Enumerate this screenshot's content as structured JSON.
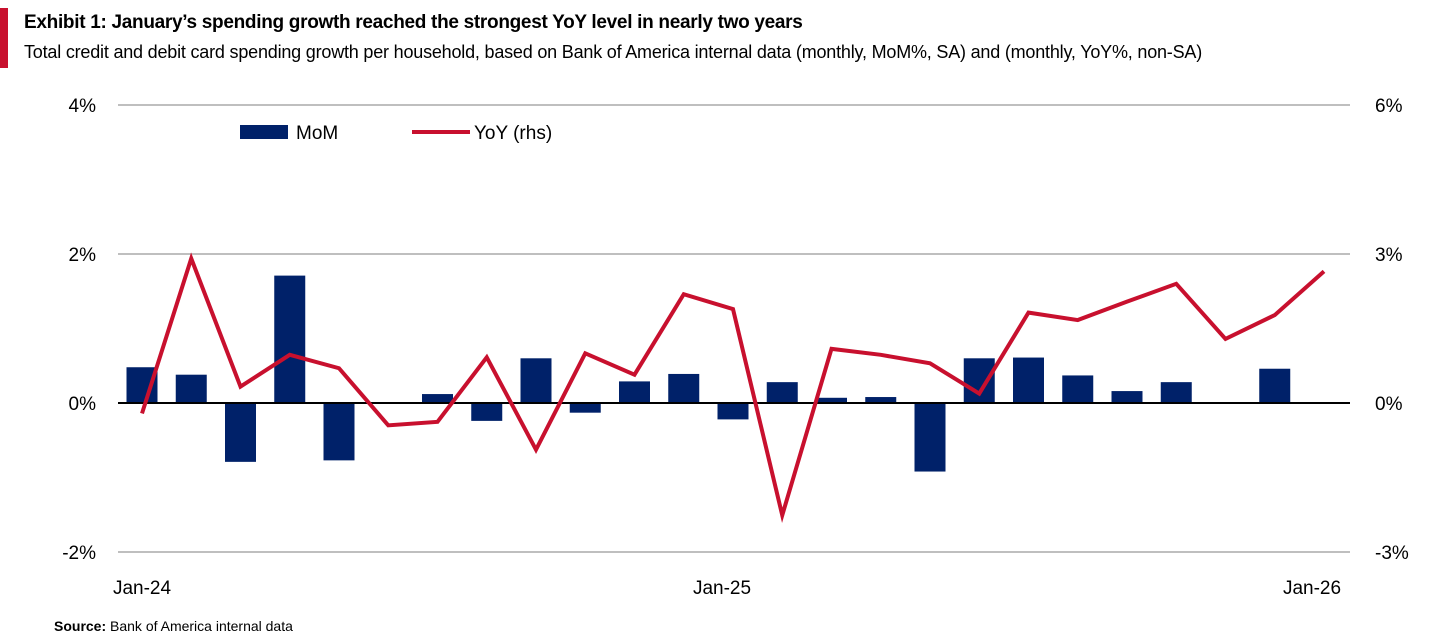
{
  "header": {
    "title": "Exhibit 1: January’s spending growth reached the strongest YoY level in nearly two years",
    "subtitle": "Total credit and debit card spending growth per household, based on Bank of America internal data (monthly, MoM%, SA) and (monthly, YoY%, non-SA)"
  },
  "footer": {
    "source_label": "Source:",
    "source_text": " Bank of America internal data"
  },
  "colors": {
    "mom": "#002169",
    "yoy": "#C8102E",
    "accent": "#C8102E",
    "grid": "#BFBFBF"
  },
  "chart_data": {
    "type": "bar+line",
    "title": "Exhibit 1: January’s spending growth reached the strongest YoY level in nearly two years",
    "x_tick_labels": [
      "Jan-24",
      "Jan-25",
      "Jan-26"
    ],
    "left_axis": {
      "ylim": [
        -2,
        4
      ],
      "ticks": [
        "-2%",
        "0%",
        "2%",
        "4%"
      ]
    },
    "right_axis": {
      "ylim": [
        -3,
        6
      ],
      "ticks": [
        "-3%",
        "0%",
        "3%",
        "6%"
      ]
    },
    "legend": {
      "placement": "top-left",
      "entries": [
        "MoM",
        "YoY (rhs)"
      ]
    },
    "months": [
      "Jan-24",
      "Feb-24",
      "Mar-24",
      "Apr-24",
      "May-24",
      "Jun-24",
      "Jul-24",
      "Aug-24",
      "Sep-24",
      "Oct-24",
      "Nov-24",
      "Dec-24",
      "Jan-25",
      "Feb-25",
      "Mar-25",
      "Apr-25",
      "May-25",
      "Jun-25",
      "Jul-25",
      "Aug-25",
      "Sep-25",
      "Oct-25",
      "Nov-25",
      "Dec-25",
      "Jan-26"
    ],
    "series": [
      {
        "name": "MoM",
        "axis": "left",
        "type": "bar",
        "values": [
          0.48,
          0.38,
          -0.79,
          1.71,
          -0.77,
          0,
          0.12,
          -0.24,
          0.6,
          -0.13,
          0.29,
          0.39,
          -0.22,
          0.28,
          0.07,
          0.08,
          -0.92,
          0.6,
          0.61,
          0.37,
          0.16,
          0.28,
          0,
          0.46,
          null
        ]
      },
      {
        "name": "YoY (rhs)",
        "axis": "right",
        "type": "line",
        "values": [
          -0.21,
          2.91,
          0.33,
          0.97,
          0.7,
          -0.45,
          -0.38,
          0.92,
          -0.94,
          1.0,
          0.57,
          2.19,
          1.89,
          -2.26,
          1.09,
          0.97,
          0.8,
          0.19,
          1.82,
          1.67,
          2.04,
          2.4,
          1.29,
          1.77,
          2.65
        ]
      }
    ]
  }
}
